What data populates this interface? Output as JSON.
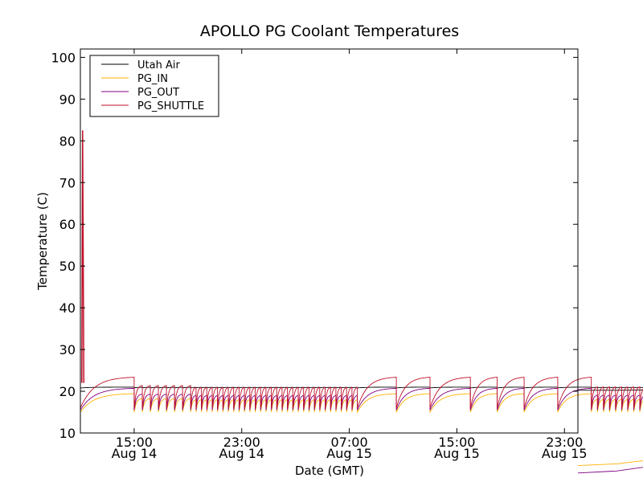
{
  "chart_data": {
    "type": "line",
    "title": "APOLLO PG Coolant Temperatures",
    "xlabel": "Date (GMT)",
    "ylabel": "Temperature (C)",
    "xlim": [
      "2013-08-14T11:00",
      "2013-08-16T00:00"
    ],
    "ylim": [
      10,
      102
    ],
    "yticks": [
      10,
      20,
      30,
      40,
      50,
      60,
      70,
      80,
      90,
      100
    ],
    "xticks": [
      {
        "t": "2013-08-14T15:00",
        "time": "15:00",
        "date": "Aug 14"
      },
      {
        "t": "2013-08-14T23:00",
        "time": "23:00",
        "date": "Aug 14"
      },
      {
        "t": "2013-08-15T07:00",
        "time": "07:00",
        "date": "Aug 15"
      },
      {
        "t": "2013-08-15T15:00",
        "time": "15:00",
        "date": "Aug 15"
      },
      {
        "t": "2013-08-15T23:00",
        "time": "23:00",
        "date": "Aug 15"
      }
    ],
    "legend_position": "top-left",
    "grid": false,
    "series": [
      {
        "name": "Utah Air",
        "color": "#000000",
        "base": 20.8,
        "peak": 21.0
      },
      {
        "name": "PG_IN",
        "color": "#ffb000",
        "base": 15.0,
        "peak": 19.5
      },
      {
        "name": "PG_OUT",
        "color": "#800080",
        "base": 15.5,
        "peak": 20.8
      },
      {
        "name": "PG_SHUTTLE",
        "color": "#c0102a",
        "base": 16.0,
        "peak": 23.5
      }
    ],
    "spike": {
      "series": "PG_SHUTTLE",
      "x": "2013-08-14T11:10",
      "y": 82.5
    }
  }
}
